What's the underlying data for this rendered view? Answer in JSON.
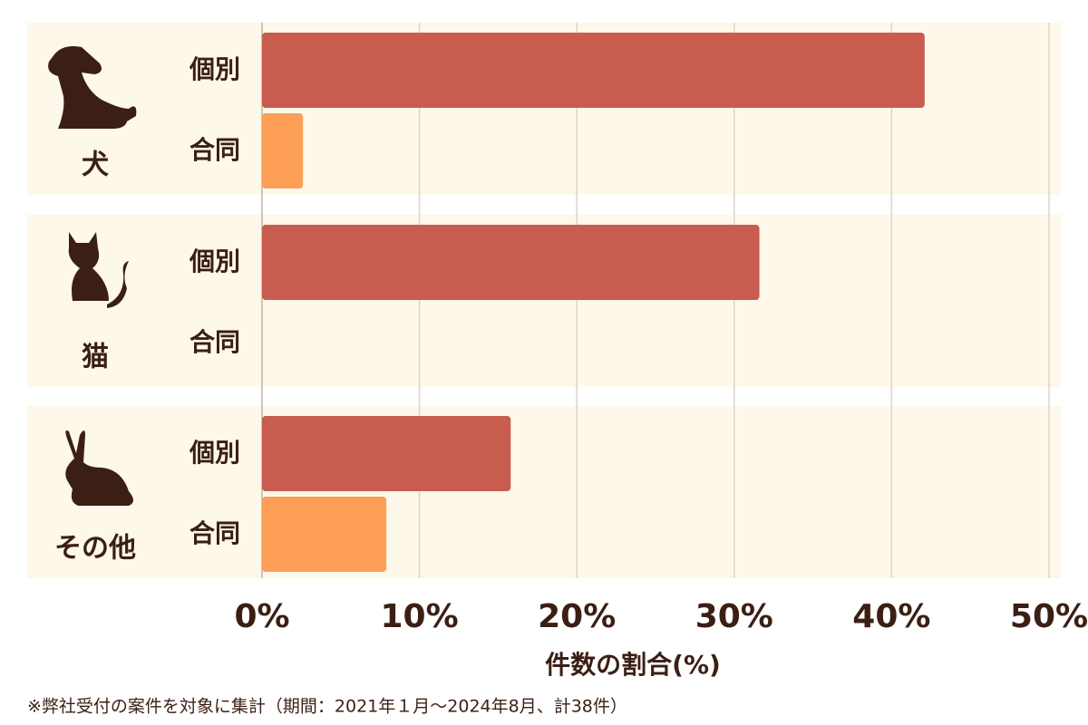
{
  "chart_data": {
    "type": "bar",
    "categories": [
      "犬",
      "猫",
      "その他"
    ],
    "series": [
      {
        "name": "個別",
        "color": "#c85c4f",
        "values": [
          42.1,
          31.6,
          15.8
        ]
      },
      {
        "name": "合同",
        "color": "#fd9f56",
        "values": [
          2.6,
          0,
          7.9
        ]
      }
    ],
    "xlim": [
      0,
      50.75
    ],
    "xticks": [
      {
        "value": 0,
        "label": "0%"
      },
      {
        "value": 10,
        "label": "10%"
      },
      {
        "value": 20,
        "label": "20%"
      },
      {
        "value": 30,
        "label": "30%"
      },
      {
        "value": 40,
        "label": "40%"
      },
      {
        "value": 50,
        "label": "50%"
      }
    ],
    "grid": true,
    "xlabel": "件数の割合(%)",
    "note": "※弊社受付の案件を対象に集計（期間：2021年１月〜2024年8月、計38件）"
  }
}
